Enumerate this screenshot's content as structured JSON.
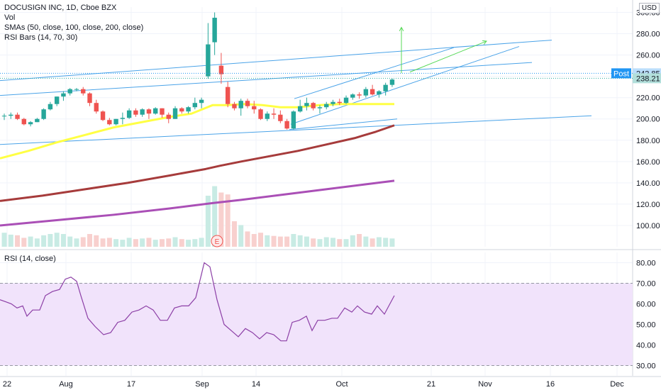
{
  "legend": {
    "title": "DOCUSIGN INC, 1D, Cboe BZX",
    "vol": "Vol",
    "smas": "SMAs (50, close, 100, close, 200, close)",
    "rsi_bars": "RSI Bars (14, 70, 30)",
    "rsi_pane": "RSI (14, close)"
  },
  "currency": "USD",
  "earnings_marker": "E",
  "colors": {
    "up": "#26a69a",
    "down": "#ef5350",
    "sma50": "#ffff44",
    "sma100": "#a63b3b",
    "sma200": "#aa4fb6",
    "trend": "#4aa3e8",
    "projection": "#57d957",
    "rsi": "#8c3fa6",
    "rsi_band": "#f1e3fb",
    "post_badge": "#2196f3"
  },
  "chart_data": [
    {
      "type": "candlestick",
      "ylim": [
        80,
        305
      ],
      "y_ticks": [
        "100.00",
        "120.00",
        "140.00",
        "160.00",
        "180.00",
        "200.00",
        "220.00",
        "240.00",
        "260.00",
        "280.00",
        "300.00"
      ],
      "x_ticks": [
        "22",
        "Aug",
        "17",
        "Sep",
        "14",
        "Oct",
        "21",
        "Nov",
        "16",
        "Dec"
      ],
      "bars": [
        [
          203,
          205,
          199,
          203
        ],
        [
          203,
          206,
          200,
          204
        ],
        [
          204,
          206,
          199,
          200
        ],
        [
          200,
          201,
          194,
          195
        ],
        [
          195,
          198,
          193,
          197
        ],
        [
          197,
          201,
          197,
          200
        ],
        [
          200,
          210,
          199,
          209
        ],
        [
          209,
          216,
          208,
          214
        ],
        [
          214,
          221,
          212,
          221
        ],
        [
          221,
          226,
          217,
          224
        ],
        [
          224,
          229,
          222,
          228
        ],
        [
          228,
          229,
          226,
          228
        ],
        [
          228,
          230,
          222,
          224
        ],
        [
          224,
          225,
          212,
          215
        ],
        [
          215,
          218,
          205,
          207
        ],
        [
          207,
          208,
          198,
          199
        ],
        [
          199,
          201,
          194,
          195
        ],
        [
          195,
          200,
          194,
          200
        ],
        [
          200,
          206,
          195,
          201
        ],
        [
          201,
          210,
          200,
          208
        ],
        [
          208,
          210,
          202,
          204
        ],
        [
          204,
          210,
          202,
          209
        ],
        [
          209,
          210,
          200,
          205
        ],
        [
          205,
          211,
          204,
          210
        ],
        [
          210,
          210,
          201,
          204
        ],
        [
          204,
          206,
          196,
          200
        ],
        [
          200,
          212,
          200,
          210
        ],
        [
          210,
          211,
          205,
          207
        ],
        [
          207,
          212,
          205,
          211
        ],
        [
          211,
          220,
          209,
          215
        ],
        [
          215,
          220,
          210,
          218
        ],
        [
          240,
          290,
          238,
          270
        ],
        [
          272,
          300,
          260,
          295
        ],
        [
          250,
          262,
          233,
          242
        ],
        [
          230,
          235,
          211,
          214
        ],
        [
          214,
          216,
          208,
          210
        ],
        [
          210,
          219,
          203,
          217
        ],
        [
          217,
          219,
          210,
          212
        ],
        [
          212,
          217,
          205,
          209
        ],
        [
          209,
          210,
          199,
          200
        ],
        [
          200,
          207,
          198,
          205
        ],
        [
          205,
          210,
          200,
          204
        ],
        [
          204,
          208,
          196,
          198
        ],
        [
          198,
          200,
          190,
          191
        ],
        [
          191,
          208,
          190,
          207
        ],
        [
          207,
          218,
          206,
          212
        ],
        [
          212,
          220,
          208,
          215
        ],
        [
          215,
          216,
          208,
          210
        ],
        [
          210,
          213,
          205,
          211
        ],
        [
          211,
          216,
          209,
          214
        ],
        [
          214,
          218,
          212,
          216
        ],
        [
          216,
          219,
          213,
          215
        ],
        [
          215,
          222,
          214,
          220
        ],
        [
          220,
          224,
          218,
          223
        ],
        [
          223,
          225,
          219,
          222
        ],
        [
          222,
          230,
          220,
          228
        ],
        [
          228,
          232,
          222,
          223
        ],
        [
          223,
          227,
          220,
          226
        ],
        [
          226,
          234,
          222,
          232
        ],
        [
          232,
          238,
          230,
          237
        ]
      ],
      "volume": [
        22,
        19,
        18,
        14,
        16,
        13,
        18,
        20,
        22,
        20,
        16,
        13,
        15,
        20,
        18,
        13,
        14,
        12,
        11,
        14,
        12,
        13,
        14,
        11,
        12,
        13,
        15,
        12,
        11,
        12,
        14,
        80,
        95,
        85,
        82,
        40,
        34,
        24,
        20,
        22,
        18,
        17,
        16,
        16,
        20,
        18,
        16,
        13,
        12,
        15,
        14,
        12,
        12,
        18,
        20,
        16,
        13,
        15,
        14,
        13
      ],
      "sma50": [
        [
          0,
          163
        ],
        [
          40,
          170
        ],
        [
          80,
          178
        ],
        [
          120,
          185
        ],
        [
          160,
          192
        ],
        [
          200,
          197
        ],
        [
          240,
          202
        ],
        [
          270,
          205
        ],
        [
          285,
          209
        ],
        [
          300,
          213
        ],
        [
          320,
          213
        ],
        [
          345,
          214
        ],
        [
          370,
          213
        ],
        [
          395,
          211
        ],
        [
          420,
          211
        ],
        [
          450,
          213
        ],
        [
          480,
          214
        ],
        [
          510,
          214
        ],
        [
          530,
          214
        ],
        [
          556,
          214
        ]
      ],
      "sma100": [
        [
          0,
          123
        ],
        [
          60,
          128
        ],
        [
          120,
          134
        ],
        [
          180,
          140
        ],
        [
          240,
          147
        ],
        [
          290,
          153
        ],
        [
          310,
          156
        ],
        [
          340,
          160
        ],
        [
          380,
          165
        ],
        [
          420,
          170
        ],
        [
          460,
          176
        ],
        [
          500,
          182
        ],
        [
          530,
          188
        ],
        [
          556,
          194
        ]
      ],
      "sma200": [
        [
          0,
          100
        ],
        [
          80,
          105
        ],
        [
          160,
          110
        ],
        [
          240,
          116
        ],
        [
          300,
          121
        ],
        [
          340,
          124
        ],
        [
          400,
          129
        ],
        [
          460,
          134
        ],
        [
          520,
          139
        ],
        [
          556,
          142
        ]
      ],
      "trendlines": [
        [
          [
            0,
            176
          ],
          [
            834,
            203
          ]
        ],
        [
          [
            0,
            222
          ],
          [
            750,
            253
          ]
        ],
        [
          [
            0,
            236
          ],
          [
            778,
            274
          ]
        ],
        [
          [
            415,
            219
          ],
          [
            640,
            267
          ]
        ],
        [
          [
            410,
            195
          ],
          [
            732,
            268
          ]
        ],
        [
          [
            408,
            190
          ],
          [
            560,
            200
          ]
        ]
      ],
      "projections": [
        [
          [
            566,
            243
          ],
          [
            566,
            286
          ]
        ],
        [
          [
            578,
            244
          ],
          [
            686,
            273
          ]
        ]
      ],
      "price_badges": [
        {
          "label": "Post",
          "value": "242.85"
        },
        {
          "value": "238.21"
        }
      ]
    },
    {
      "type": "line",
      "ylim": [
        25,
        85
      ],
      "y_ticks": [
        "30.00",
        "40.00",
        "50.00",
        "60.00",
        "70.00",
        "80.00"
      ],
      "rsi": [
        [
          0,
          62
        ],
        [
          8,
          61
        ],
        [
          16,
          60
        ],
        [
          24,
          58
        ],
        [
          32,
          59
        ],
        [
          38,
          54
        ],
        [
          46,
          57
        ],
        [
          56,
          57
        ],
        [
          64,
          64
        ],
        [
          74,
          66
        ],
        [
          84,
          67
        ],
        [
          92,
          72
        ],
        [
          100,
          73
        ],
        [
          108,
          71
        ],
        [
          114,
          64
        ],
        [
          124,
          53
        ],
        [
          134,
          49
        ],
        [
          146,
          45
        ],
        [
          156,
          46
        ],
        [
          166,
          51
        ],
        [
          176,
          52
        ],
        [
          186,
          56
        ],
        [
          196,
          57
        ],
        [
          206,
          59
        ],
        [
          216,
          57
        ],
        [
          226,
          52
        ],
        [
          236,
          52
        ],
        [
          246,
          58
        ],
        [
          256,
          59
        ],
        [
          266,
          59
        ],
        [
          276,
          63
        ],
        [
          288,
          80
        ],
        [
          296,
          78
        ],
        [
          306,
          62
        ],
        [
          316,
          50
        ],
        [
          326,
          47
        ],
        [
          336,
          44
        ],
        [
          346,
          48
        ],
        [
          356,
          46
        ],
        [
          366,
          43
        ],
        [
          376,
          46
        ],
        [
          386,
          45
        ],
        [
          396,
          42
        ],
        [
          404,
          42
        ],
        [
          412,
          51
        ],
        [
          422,
          52
        ],
        [
          432,
          54
        ],
        [
          440,
          47
        ],
        [
          448,
          52
        ],
        [
          458,
          52
        ],
        [
          468,
          53
        ],
        [
          476,
          53
        ],
        [
          486,
          58
        ],
        [
          496,
          56
        ],
        [
          504,
          59
        ],
        [
          514,
          56
        ],
        [
          524,
          55
        ],
        [
          532,
          59
        ],
        [
          542,
          55
        ],
        [
          556,
          64
        ]
      ]
    }
  ]
}
